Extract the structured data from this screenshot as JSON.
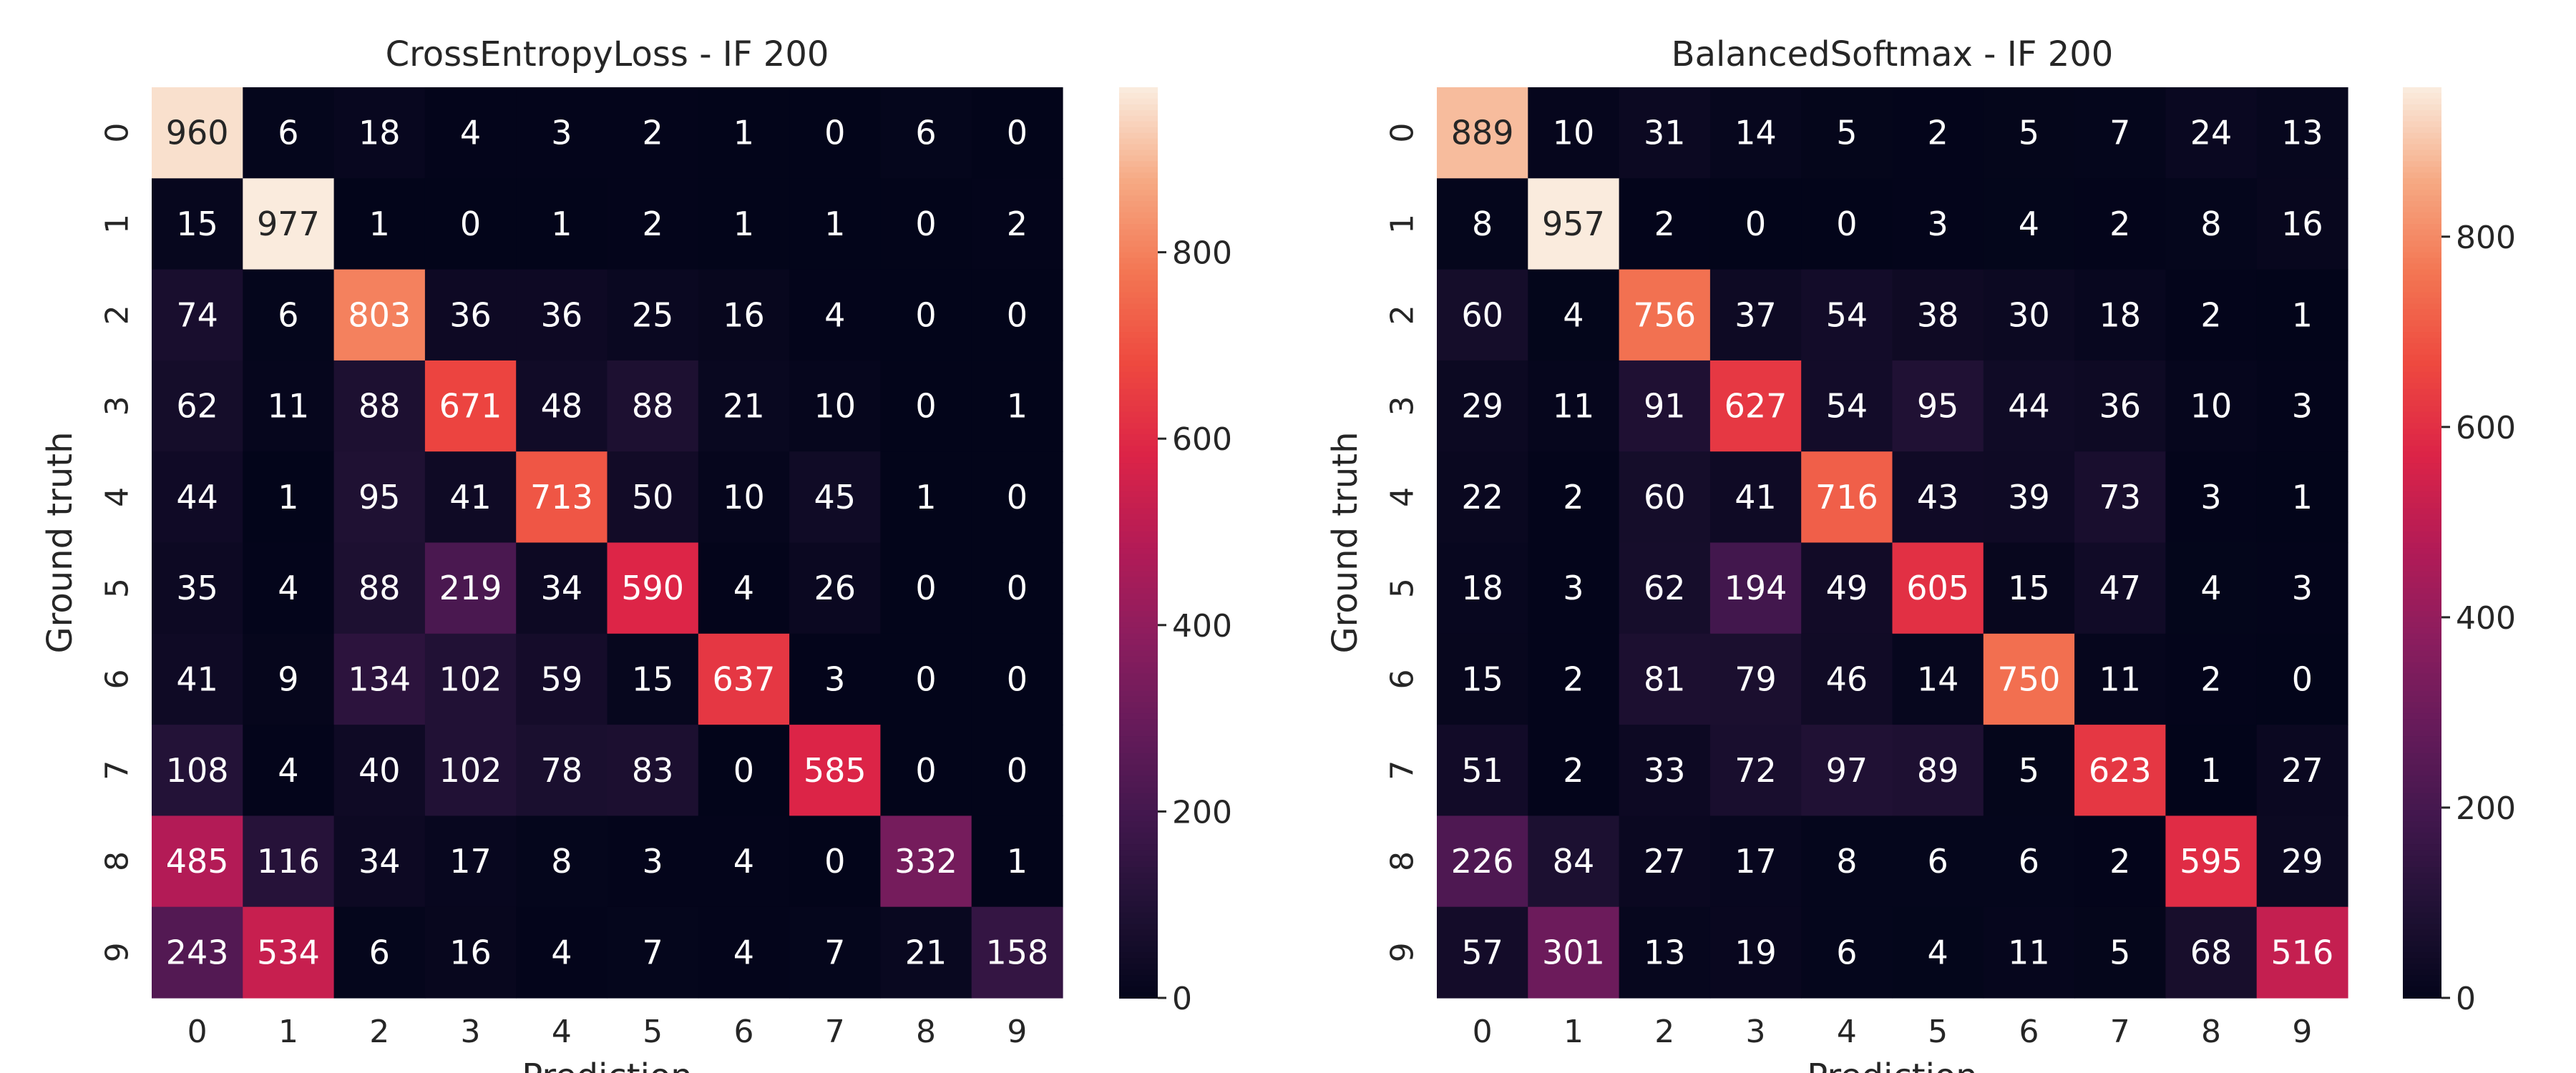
{
  "chart_data": [
    {
      "type": "heatmap",
      "title": "CrossEntropyLoss - IF 200",
      "xlabel": "Prediction",
      "ylabel": "Ground truth",
      "x_categories": [
        "0",
        "1",
        "2",
        "3",
        "4",
        "5",
        "6",
        "7",
        "8",
        "9"
      ],
      "y_categories": [
        "0",
        "1",
        "2",
        "3",
        "4",
        "5",
        "6",
        "7",
        "8",
        "9"
      ],
      "values": [
        [
          960,
          6,
          18,
          4,
          3,
          2,
          1,
          0,
          6,
          0
        ],
        [
          15,
          977,
          1,
          0,
          1,
          2,
          1,
          1,
          0,
          2
        ],
        [
          74,
          6,
          803,
          36,
          36,
          25,
          16,
          4,
          0,
          0
        ],
        [
          62,
          11,
          88,
          671,
          48,
          88,
          21,
          10,
          0,
          1
        ],
        [
          44,
          1,
          95,
          41,
          713,
          50,
          10,
          45,
          1,
          0
        ],
        [
          35,
          4,
          88,
          219,
          34,
          590,
          4,
          26,
          0,
          0
        ],
        [
          41,
          9,
          134,
          102,
          59,
          15,
          637,
          3,
          0,
          0
        ],
        [
          108,
          4,
          40,
          102,
          78,
          83,
          0,
          585,
          0,
          0
        ],
        [
          485,
          116,
          34,
          17,
          8,
          3,
          4,
          0,
          332,
          1
        ],
        [
          243,
          534,
          6,
          16,
          4,
          7,
          4,
          7,
          21,
          158
        ]
      ],
      "colorbar": {
        "range": [
          0,
          977
        ],
        "ticks": [
          0,
          200,
          400,
          600,
          800
        ]
      },
      "colormap": "rocket"
    },
    {
      "type": "heatmap",
      "title": "BalancedSoftmax - IF 200",
      "xlabel": "Prediction",
      "ylabel": "Ground truth",
      "x_categories": [
        "0",
        "1",
        "2",
        "3",
        "4",
        "5",
        "6",
        "7",
        "8",
        "9"
      ],
      "y_categories": [
        "0",
        "1",
        "2",
        "3",
        "4",
        "5",
        "6",
        "7",
        "8",
        "9"
      ],
      "values": [
        [
          889,
          10,
          31,
          14,
          5,
          2,
          5,
          7,
          24,
          13
        ],
        [
          8,
          957,
          2,
          0,
          0,
          3,
          4,
          2,
          8,
          16
        ],
        [
          60,
          4,
          756,
          37,
          54,
          38,
          30,
          18,
          2,
          1
        ],
        [
          29,
          11,
          91,
          627,
          54,
          95,
          44,
          36,
          10,
          3
        ],
        [
          22,
          2,
          60,
          41,
          716,
          43,
          39,
          73,
          3,
          1
        ],
        [
          18,
          3,
          62,
          194,
          49,
          605,
          15,
          47,
          4,
          3
        ],
        [
          15,
          2,
          81,
          79,
          46,
          14,
          750,
          11,
          2,
          0
        ],
        [
          51,
          2,
          33,
          72,
          97,
          89,
          5,
          623,
          1,
          27
        ],
        [
          226,
          84,
          27,
          17,
          8,
          6,
          6,
          2,
          595,
          29
        ],
        [
          57,
          301,
          13,
          19,
          6,
          4,
          11,
          5,
          68,
          516
        ]
      ],
      "colorbar": {
        "range": [
          0,
          957
        ],
        "ticks": [
          0,
          200,
          400,
          600,
          800
        ]
      },
      "colormap": "rocket"
    }
  ]
}
